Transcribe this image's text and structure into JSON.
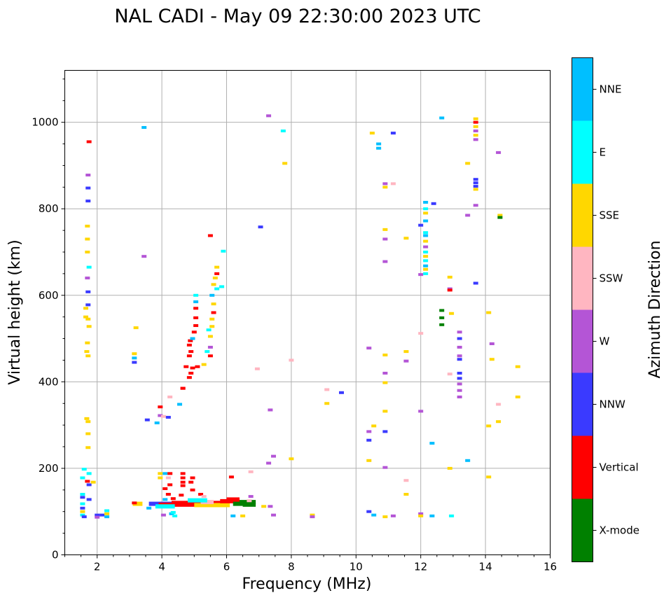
{
  "chart_data": {
    "type": "scatter",
    "title": "NAL CADI - May 09 22:30:00 2023 UTC",
    "xlabel": "Frequency (MHz)",
    "ylabel": "Virtual height (km)",
    "xlim": [
      1,
      16
    ],
    "ylim": [
      0,
      1120
    ],
    "x_ticks": [
      2,
      4,
      6,
      8,
      10,
      12,
      14,
      16
    ],
    "y_ticks": [
      0,
      200,
      400,
      600,
      800,
      1000
    ],
    "grid": true,
    "colorbar": {
      "title": "Azimuth Direction",
      "categories": [
        {
          "label": "X-mode",
          "color": "#008000"
        },
        {
          "label": "Vertical",
          "color": "#ff0000"
        },
        {
          "label": "NNW",
          "color": "#3a3aff"
        },
        {
          "label": "W",
          "color": "#b455d6"
        },
        {
          "label": "SSW",
          "color": "#ffb6c1"
        },
        {
          "label": "SSE",
          "color": "#ffd700"
        },
        {
          "label": "E",
          "color": "#00ffff"
        },
        {
          "label": "NNE",
          "color": "#00bfff"
        }
      ]
    },
    "points": [
      [
        1.75,
        955,
        "Vertical"
      ],
      [
        1.72,
        878,
        "W"
      ],
      [
        1.72,
        848,
        "NNW"
      ],
      [
        1.72,
        818,
        "NNW"
      ],
      [
        1.7,
        760,
        "SSE"
      ],
      [
        1.7,
        730,
        "SSE"
      ],
      [
        1.7,
        700,
        "SSE"
      ],
      [
        1.75,
        665,
        "E"
      ],
      [
        1.7,
        640,
        "W"
      ],
      [
        1.72,
        608,
        "NNW"
      ],
      [
        1.65,
        570,
        "SSE"
      ],
      [
        1.72,
        578,
        "NNW"
      ],
      [
        1.65,
        550,
        "SSE"
      ],
      [
        1.72,
        545,
        "SSE"
      ],
      [
        1.75,
        528,
        "SSE"
      ],
      [
        1.7,
        490,
        "SSE"
      ],
      [
        1.68,
        470,
        "SSE"
      ],
      [
        1.72,
        460,
        "SSE"
      ],
      [
        1.68,
        315,
        "SSE"
      ],
      [
        1.72,
        308,
        "SSE"
      ],
      [
        1.72,
        280,
        "SSE"
      ],
      [
        1.72,
        248,
        "SSE"
      ],
      [
        1.6,
        198,
        "E"
      ],
      [
        1.75,
        188,
        "E"
      ],
      [
        1.55,
        178,
        "E"
      ],
      [
        1.7,
        170,
        "Vertical"
      ],
      [
        1.75,
        162,
        "NNW"
      ],
      [
        1.88,
        168,
        "SSE"
      ],
      [
        1.55,
        140,
        "E"
      ],
      [
        1.55,
        133,
        "NNW"
      ],
      [
        1.75,
        128,
        "NNW"
      ],
      [
        1.55,
        118,
        "E"
      ],
      [
        1.55,
        108,
        "NNW"
      ],
      [
        1.55,
        100,
        "SSE"
      ],
      [
        1.55,
        92,
        "E"
      ],
      [
        1.6,
        88,
        "NNW"
      ],
      [
        2.0,
        92,
        "NNW"
      ],
      [
        2.0,
        87,
        "W"
      ],
      [
        2.15,
        92,
        "NNW"
      ],
      [
        2.3,
        102,
        "E"
      ],
      [
        2.3,
        95,
        "SSE"
      ],
      [
        2.3,
        88,
        "NNE"
      ],
      [
        3.45,
        988,
        "NNE"
      ],
      [
        3.45,
        690,
        "W"
      ],
      [
        3.2,
        525,
        "SSE"
      ],
      [
        3.15,
        465,
        "SSE"
      ],
      [
        3.15,
        455,
        "NNE"
      ],
      [
        3.15,
        445,
        "NNW"
      ],
      [
        3.55,
        312,
        "NNW"
      ],
      [
        3.85,
        305,
        "NNE"
      ],
      [
        3.95,
        322,
        "W"
      ],
      [
        4.05,
        320,
        "SSW"
      ],
      [
        4.2,
        318,
        "NNW"
      ],
      [
        3.95,
        342,
        "Vertical"
      ],
      [
        4.25,
        365,
        "SSW"
      ],
      [
        4.55,
        348,
        "NNE"
      ],
      [
        4.65,
        385,
        "Vertical"
      ],
      [
        3.15,
        120,
        "Vertical"
      ],
      [
        3.6,
        108,
        "NNE"
      ],
      [
        3.95,
        188,
        "SSE"
      ],
      [
        4.1,
        188,
        "NNE"
      ],
      [
        3.95,
        178,
        "SSE"
      ],
      [
        4.25,
        188,
        "Vertical"
      ],
      [
        4.2,
        178,
        "SSW"
      ],
      [
        4.65,
        188,
        "Vertical"
      ],
      [
        4.65,
        178,
        "Vertical"
      ],
      [
        4.65,
        168,
        "Vertical"
      ],
      [
        4.65,
        160,
        "Vertical"
      ],
      [
        4.1,
        153,
        "Vertical"
      ],
      [
        4.25,
        162,
        "Vertical"
      ],
      [
        4.95,
        178,
        "Vertical"
      ],
      [
        4.9,
        168,
        "Vertical"
      ],
      [
        4.95,
        150,
        "Vertical"
      ],
      [
        4.2,
        140,
        "Vertical"
      ],
      [
        4.1,
        128,
        "NNE"
      ],
      [
        4.35,
        130,
        "Vertical"
      ],
      [
        4.6,
        138,
        "Vertical"
      ],
      [
        5.2,
        140,
        "Vertical"
      ],
      [
        5.3,
        135,
        "SSW"
      ],
      [
        4.05,
        92,
        "W"
      ],
      [
        4.3,
        95,
        "NNE"
      ],
      [
        4.4,
        90,
        "E"
      ],
      [
        4.35,
        98,
        "E"
      ],
      [
        4.65,
        385,
        "Vertical"
      ],
      [
        4.75,
        435,
        "Vertical"
      ],
      [
        4.85,
        410,
        "Vertical"
      ],
      [
        4.9,
        420,
        "Vertical"
      ],
      [
        4.95,
        432,
        "Vertical"
      ],
      [
        4.85,
        460,
        "Vertical"
      ],
      [
        4.9,
        470,
        "Vertical"
      ],
      [
        4.85,
        485,
        "Vertical"
      ],
      [
        4.88,
        495,
        "Vertical"
      ],
      [
        4.95,
        500,
        "NNE"
      ],
      [
        5.0,
        515,
        "Vertical"
      ],
      [
        5.05,
        530,
        "Vertical"
      ],
      [
        5.05,
        548,
        "Vertical"
      ],
      [
        5.05,
        570,
        "Vertical"
      ],
      [
        5.05,
        585,
        "NNE"
      ],
      [
        5.05,
        600,
        "E"
      ],
      [
        5.1,
        435,
        "Vertical"
      ],
      [
        5.3,
        440,
        "SSE"
      ],
      [
        5.4,
        470,
        "E"
      ],
      [
        5.5,
        460,
        "Vertical"
      ],
      [
        5.5,
        480,
        "W"
      ],
      [
        5.5,
        505,
        "SSE"
      ],
      [
        5.45,
        520,
        "E"
      ],
      [
        5.55,
        528,
        "SSE"
      ],
      [
        5.55,
        545,
        "SSE"
      ],
      [
        5.6,
        560,
        "Vertical"
      ],
      [
        5.6,
        580,
        "SSE"
      ],
      [
        5.55,
        600,
        "NNE"
      ],
      [
        5.6,
        625,
        "SSE"
      ],
      [
        5.65,
        640,
        "SSE"
      ],
      [
        5.7,
        650,
        "Vertical"
      ],
      [
        5.7,
        665,
        "SSE"
      ],
      [
        5.7,
        615,
        "E"
      ],
      [
        5.85,
        620,
        "E"
      ],
      [
        5.5,
        738,
        "Vertical"
      ],
      [
        5.9,
        702,
        "E"
      ],
      [
        6.15,
        180,
        "Vertical"
      ],
      [
        6.75,
        192,
        "SSW"
      ],
      [
        6.75,
        135,
        "W"
      ],
      [
        6.7,
        125,
        "SSW"
      ],
      [
        7.15,
        112,
        "SSE"
      ],
      [
        7.35,
        112,
        "W"
      ],
      [
        6.2,
        90,
        "NNE"
      ],
      [
        6.5,
        90,
        "SSE"
      ],
      [
        6.95,
        430,
        "SSW"
      ],
      [
        7.05,
        758,
        "NNW"
      ],
      [
        7.3,
        1015,
        "W"
      ],
      [
        7.35,
        335,
        "W"
      ],
      [
        7.3,
        212,
        "W"
      ],
      [
        7.45,
        228,
        "W"
      ],
      [
        7.45,
        92,
        "W"
      ],
      [
        7.75,
        980,
        "E"
      ],
      [
        7.8,
        905,
        "SSE"
      ],
      [
        8.0,
        450,
        "SSW"
      ],
      [
        8.0,
        222,
        "SSE"
      ],
      [
        8.65,
        92,
        "SSE"
      ],
      [
        8.65,
        88,
        "W"
      ],
      [
        9.1,
        382,
        "SSW"
      ],
      [
        9.1,
        350,
        "SSE"
      ],
      [
        9.55,
        375,
        "NNW"
      ],
      [
        10.5,
        975,
        "SSE"
      ],
      [
        10.7,
        950,
        "NNE"
      ],
      [
        10.7,
        940,
        "NNE"
      ],
      [
        10.9,
        858,
        "W"
      ],
      [
        10.9,
        850,
        "SSE"
      ],
      [
        11.15,
        858,
        "SSW"
      ],
      [
        11.15,
        975,
        "NNW"
      ],
      [
        10.9,
        752,
        "SSE"
      ],
      [
        10.9,
        730,
        "W"
      ],
      [
        10.9,
        678,
        "W"
      ],
      [
        10.4,
        478,
        "W"
      ],
      [
        10.9,
        462,
        "SSE"
      ],
      [
        10.9,
        420,
        "W"
      ],
      [
        10.9,
        398,
        "SSE"
      ],
      [
        10.9,
        332,
        "SSE"
      ],
      [
        10.55,
        298,
        "SSE"
      ],
      [
        10.4,
        285,
        "W"
      ],
      [
        10.9,
        285,
        "NNW"
      ],
      [
        10.4,
        265,
        "NNW"
      ],
      [
        10.4,
        218,
        "SSE"
      ],
      [
        10.9,
        202,
        "W"
      ],
      [
        10.4,
        100,
        "NNW"
      ],
      [
        10.55,
        92,
        "NNE"
      ],
      [
        10.9,
        88,
        "SSE"
      ],
      [
        11.15,
        90,
        "W"
      ],
      [
        11.55,
        732,
        "SSE"
      ],
      [
        11.55,
        470,
        "SSE"
      ],
      [
        11.55,
        448,
        "W"
      ],
      [
        11.55,
        172,
        "SSW"
      ],
      [
        11.55,
        140,
        "SSE"
      ],
      [
        12.0,
        762,
        "NNW"
      ],
      [
        12.0,
        648,
        "W"
      ],
      [
        12.0,
        512,
        "SSW"
      ],
      [
        12.0,
        332,
        "W"
      ],
      [
        12.0,
        95,
        "W"
      ],
      [
        12.0,
        90,
        "SSE"
      ],
      [
        12.15,
        815,
        "NNE"
      ],
      [
        12.15,
        800,
        "E"
      ],
      [
        12.15,
        790,
        "SSE"
      ],
      [
        12.15,
        772,
        "NNE"
      ],
      [
        12.15,
        745,
        "E"
      ],
      [
        12.15,
        738,
        "NNE"
      ],
      [
        12.15,
        725,
        "SSE"
      ],
      [
        12.15,
        712,
        "W"
      ],
      [
        12.15,
        700,
        "E"
      ],
      [
        12.15,
        690,
        "SSE"
      ],
      [
        12.15,
        680,
        "E"
      ],
      [
        12.15,
        668,
        "NNE"
      ],
      [
        12.15,
        660,
        "SSE"
      ],
      [
        12.15,
        650,
        "E"
      ],
      [
        12.4,
        812,
        "NNW"
      ],
      [
        12.35,
        258,
        "NNE"
      ],
      [
        12.35,
        90,
        "NNE"
      ],
      [
        12.65,
        1010,
        "NNE"
      ],
      [
        12.65,
        565,
        "X-mode"
      ],
      [
        12.65,
        548,
        "X-mode"
      ],
      [
        12.65,
        532,
        "X-mode"
      ],
      [
        12.9,
        642,
        "SSE"
      ],
      [
        12.9,
        615,
        "W"
      ],
      [
        12.9,
        612,
        "Vertical"
      ],
      [
        12.95,
        558,
        "SSE"
      ],
      [
        12.9,
        418,
        "SSW"
      ],
      [
        12.9,
        200,
        "SSE"
      ],
      [
        12.95,
        90,
        "E"
      ],
      [
        13.2,
        515,
        "W"
      ],
      [
        13.2,
        500,
        "NNW"
      ],
      [
        13.2,
        480,
        "W"
      ],
      [
        13.2,
        460,
        "W"
      ],
      [
        13.2,
        452,
        "NNW"
      ],
      [
        13.2,
        420,
        "NNW"
      ],
      [
        13.2,
        408,
        "NNW"
      ],
      [
        13.2,
        395,
        "W"
      ],
      [
        13.2,
        380,
        "W"
      ],
      [
        13.2,
        365,
        "W"
      ],
      [
        13.45,
        905,
        "SSE"
      ],
      [
        13.45,
        785,
        "W"
      ],
      [
        13.45,
        218,
        "NNE"
      ],
      [
        13.7,
        1008,
        "SSE"
      ],
      [
        13.7,
        1000,
        "Vertical"
      ],
      [
        13.7,
        990,
        "SSE"
      ],
      [
        13.7,
        980,
        "W"
      ],
      [
        13.7,
        970,
        "SSE"
      ],
      [
        13.7,
        960,
        "W"
      ],
      [
        13.7,
        868,
        "NNW"
      ],
      [
        13.7,
        860,
        "NNW"
      ],
      [
        13.7,
        852,
        "NNW"
      ],
      [
        13.7,
        845,
        "SSE"
      ],
      [
        13.7,
        808,
        "W"
      ],
      [
        13.7,
        628,
        "NNW"
      ],
      [
        14.1,
        560,
        "SSE"
      ],
      [
        14.2,
        488,
        "W"
      ],
      [
        14.2,
        452,
        "SSE"
      ],
      [
        14.1,
        298,
        "SSE"
      ],
      [
        14.1,
        180,
        "SSE"
      ],
      [
        14.4,
        930,
        "W"
      ],
      [
        14.45,
        785,
        "SSE"
      ],
      [
        14.45,
        780,
        "X-mode"
      ],
      [
        14.4,
        348,
        "SSW"
      ],
      [
        14.4,
        308,
        "SSE"
      ],
      [
        15.0,
        435,
        "SSE"
      ],
      [
        15.0,
        365,
        "SSE"
      ]
    ],
    "strips": [
      [
        3.6,
        5.0,
        118,
        "NNW"
      ],
      [
        3.9,
        5.2,
        116,
        "Vertical"
      ],
      [
        4.3,
        6.0,
        120,
        "Vertical"
      ],
      [
        5.0,
        6.1,
        115,
        "SSE"
      ],
      [
        5.8,
        6.4,
        124,
        "Vertical"
      ],
      [
        6.0,
        6.4,
        128,
        "Vertical"
      ],
      [
        6.2,
        6.7,
        118,
        "X-mode"
      ],
      [
        6.4,
        6.9,
        122,
        "X-mode"
      ],
      [
        6.5,
        6.9,
        116,
        "X-mode"
      ],
      [
        3.1,
        3.4,
        118,
        "SSE"
      ],
      [
        5.2,
        5.6,
        122,
        "SSW"
      ],
      [
        4.8,
        5.4,
        126,
        "E"
      ],
      [
        3.8,
        4.4,
        112,
        "E"
      ]
    ]
  }
}
